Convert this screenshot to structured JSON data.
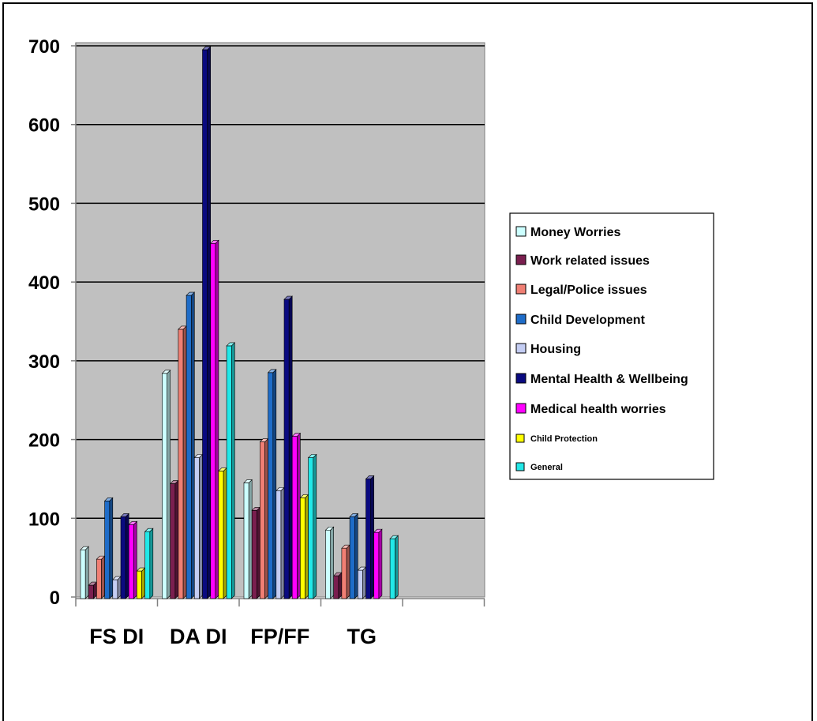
{
  "chart_data": {
    "type": "bar",
    "title": "",
    "xlabel": "",
    "ylabel": "",
    "categories": [
      "FS DI",
      "DA DI",
      "FP/FF",
      "TG"
    ],
    "ylim": [
      0,
      700
    ],
    "yticks": [
      0,
      100,
      200,
      300,
      400,
      500,
      600,
      700
    ],
    "grid": true,
    "legend_position": "right",
    "series": [
      {
        "name": "Money Worries",
        "color": "#ccffff",
        "values": [
          60,
          284,
          145,
          85
        ]
      },
      {
        "name": "Work related issues",
        "color": "#7a1f4f",
        "values": [
          15,
          144,
          110,
          27
        ]
      },
      {
        "name": "Legal/Police issues",
        "color": "#f07f74",
        "values": [
          48,
          340,
          197,
          62
        ]
      },
      {
        "name": "Child Development",
        "color": "#1e6cc8",
        "values": [
          122,
          383,
          285,
          102
        ]
      },
      {
        "name": "Housing",
        "color": "#c4cdf3",
        "values": [
          22,
          177,
          135,
          34
        ]
      },
      {
        "name": "Mental Health & Wellbeing",
        "color": "#0a0a80",
        "values": [
          102,
          695,
          378,
          150
        ]
      },
      {
        "name": "Medical health worries",
        "color": "#ff00ff",
        "values": [
          92,
          449,
          204,
          82
        ]
      },
      {
        "name": "Child Protection",
        "color": "#ffff00",
        "values": [
          33,
          160,
          126,
          0
        ]
      },
      {
        "name": "General",
        "color": "#22e8e8",
        "values": [
          83,
          319,
          177,
          74
        ]
      }
    ]
  }
}
